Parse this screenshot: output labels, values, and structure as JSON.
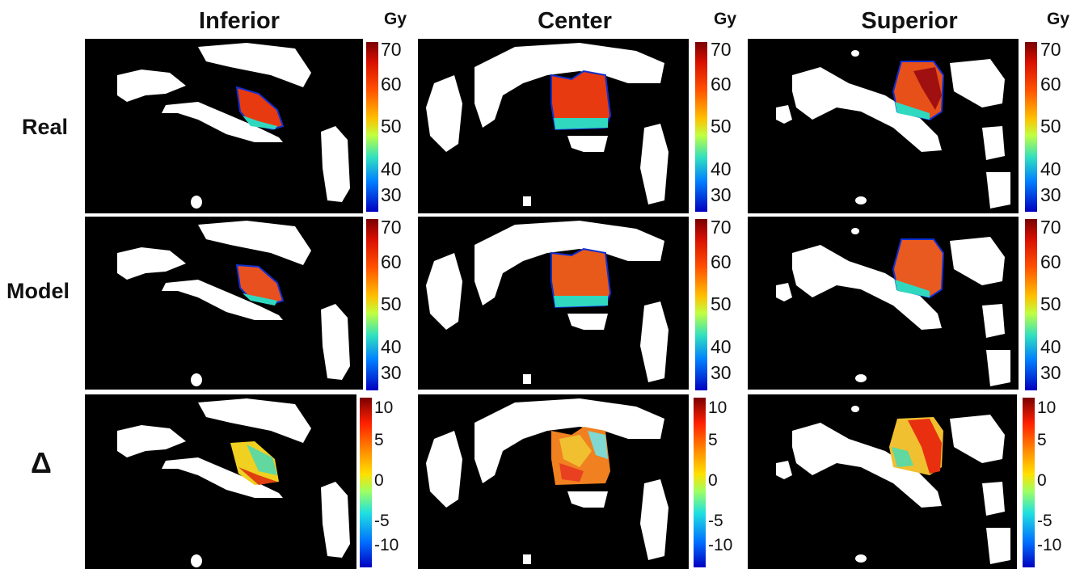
{
  "columns": [
    {
      "title": "Inferior",
      "unit": "Gy"
    },
    {
      "title": "Center",
      "unit": "Gy"
    },
    {
      "title": "Superior",
      "unit": "Gy"
    }
  ],
  "rows": [
    "Real",
    "Model",
    "Δ"
  ],
  "dose_ticks": [
    "70",
    "60",
    "50",
    "40",
    "30"
  ],
  "delta_ticks": [
    "10",
    "5",
    "0",
    "-5",
    "-10"
  ],
  "colors": {
    "background": "#000000",
    "organ": "#ffffff",
    "dose_high": "#e83a10",
    "contour": "#1030d0"
  }
}
